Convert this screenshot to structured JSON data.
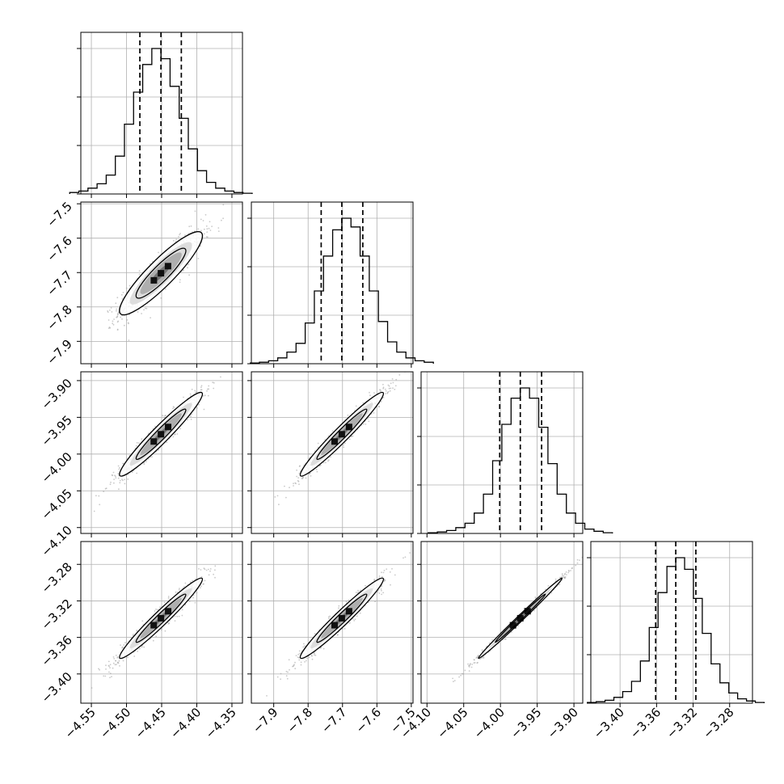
{
  "chart_data": {
    "type": "corner",
    "parameters": [
      {
        "index": 0,
        "range": [
          -4.565,
          -4.335
        ],
        "ticks": [
          "−4.55",
          "−4.50",
          "−4.45",
          "−4.40",
          "−4.35"
        ],
        "tick_values": [
          -4.55,
          -4.5,
          -4.45,
          -4.4,
          -4.35
        ],
        "median": -4.451,
        "lower": -4.481,
        "upper": -4.422
      },
      {
        "index": 1,
        "range": [
          -7.965,
          -7.495
        ],
        "ticks": [
          "−7.9",
          "−7.8",
          "−7.7",
          "−7.6",
          "−7.5"
        ],
        "tick_values": [
          -7.9,
          -7.8,
          -7.7,
          -7.6,
          -7.5
        ],
        "median": -7.702,
        "lower": -7.762,
        "upper": -7.641
      },
      {
        "index": 2,
        "range": [
          -4.108,
          -3.888
        ],
        "ticks": [
          "−4.10",
          "−4.05",
          "−4.00",
          "−3.95",
          "−3.90"
        ],
        "tick_values": [
          -4.1,
          -4.05,
          -4.0,
          -3.95,
          -3.9
        ],
        "median": -3.973,
        "lower": -4.001,
        "upper": -3.944
      },
      {
        "index": 3,
        "range": [
          -3.432,
          -3.255
        ],
        "ticks": [
          "−3.40",
          "−3.36",
          "−3.32",
          "−3.28"
        ],
        "tick_values": [
          -3.4,
          -3.36,
          -3.32,
          -3.28
        ],
        "median": -3.339,
        "lower": -3.361,
        "upper": -3.317
      }
    ],
    "histograms": [
      {
        "param": 0,
        "counts": [
          0.01,
          0.02,
          0.04,
          0.07,
          0.13,
          0.26,
          0.48,
          0.7,
          0.89,
          1.0,
          0.93,
          0.74,
          0.52,
          0.31,
          0.16,
          0.08,
          0.04,
          0.02,
          0.01,
          0.005
        ]
      },
      {
        "param": 1,
        "counts": [
          0.005,
          0.01,
          0.02,
          0.04,
          0.08,
          0.14,
          0.28,
          0.5,
          0.74,
          0.92,
          1.0,
          0.94,
          0.74,
          0.5,
          0.29,
          0.15,
          0.08,
          0.04,
          0.02,
          0.01
        ]
      },
      {
        "param": 2,
        "counts": [
          0.005,
          0.01,
          0.02,
          0.04,
          0.07,
          0.14,
          0.27,
          0.5,
          0.75,
          0.93,
          1.0,
          0.93,
          0.73,
          0.48,
          0.27,
          0.14,
          0.07,
          0.03,
          0.015,
          0.005
        ]
      },
      {
        "param": 3,
        "counts": [
          0.005,
          0.01,
          0.02,
          0.04,
          0.08,
          0.15,
          0.29,
          0.52,
          0.76,
          0.94,
          1.0,
          0.92,
          0.72,
          0.48,
          0.27,
          0.14,
          0.07,
          0.03,
          0.015,
          0.005
        ]
      }
    ],
    "scatter_pairs": [
      {
        "x_param": 0,
        "y_param": 1,
        "correlation": 0.9
      },
      {
        "x_param": 0,
        "y_param": 2,
        "correlation": 0.96
      },
      {
        "x_param": 1,
        "y_param": 2,
        "correlation": 0.97
      },
      {
        "x_param": 0,
        "y_param": 3,
        "correlation": 0.97
      },
      {
        "x_param": 1,
        "y_param": 3,
        "correlation": 0.97
      },
      {
        "x_param": 2,
        "y_param": 3,
        "correlation": 0.995
      }
    ],
    "contour_sigma_levels": [
      0.5,
      1.0,
      1.5,
      2.0
    ],
    "grid": true,
    "colors": {
      "points": "#9e9e9e",
      "hist": "#000000",
      "contour": "#000000"
    }
  }
}
